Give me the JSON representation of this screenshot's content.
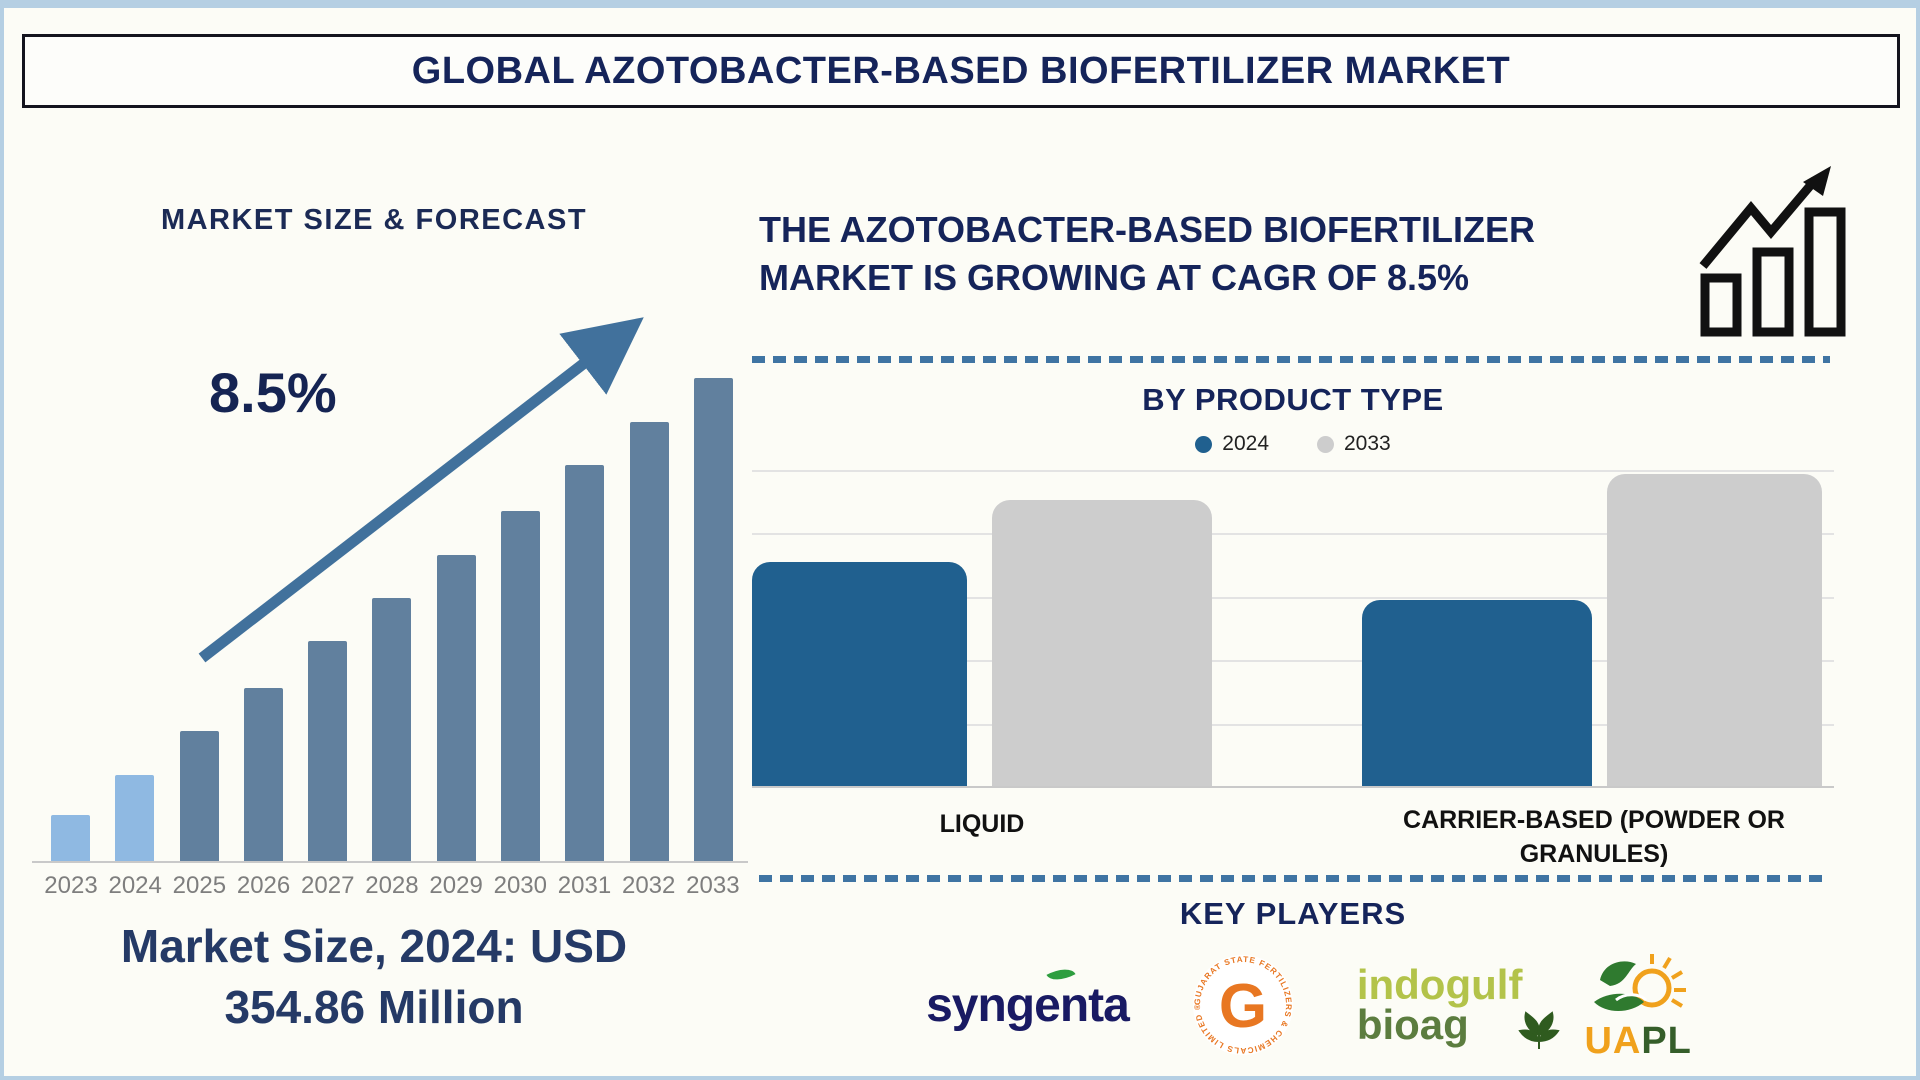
{
  "page": {
    "title": "GLOBAL AZOTOBACTER-BASED BIOFERTILIZER MARKET"
  },
  "left": {
    "heading": "MARKET SIZE & FORECAST",
    "cagr_label": "8.5%",
    "market_size_line1": "Market Size, 2024: USD",
    "market_size_line2": "354.86 Million",
    "arrow_color": "#41719c"
  },
  "right": {
    "heading_line1": "THE AZOTOBACTER-BASED BIOFERTILIZER",
    "heading_line2": "MARKET IS GROWING AT CAGR OF 8.5%",
    "key_players_title": "KEY PLAYERS",
    "key_players": [
      {
        "name": "Syngenta",
        "wordmark": "syngenta"
      },
      {
        "name": "Gujarat State Fertilizers & Chemicals Limited",
        "monogram": "G",
        "ring_text": "GUJARAT STATE FERTILIZERS & CHEMICALS LIMITED ®"
      },
      {
        "name": "Indogulf BioAg",
        "line1": "indogulf",
        "line2": "bioag"
      },
      {
        "name": "UAPL",
        "text_left": "UA",
        "text_right": "PL"
      }
    ]
  },
  "chart_data": [
    {
      "type": "bar",
      "title": "MARKET SIZE & FORECAST",
      "categories": [
        "2023",
        "2024",
        "2025",
        "2026",
        "2027",
        "2028",
        "2029",
        "2030",
        "2031",
        "2032",
        "2033"
      ],
      "values_relative_height_pct": [
        9.5,
        17.8,
        26.9,
        35.9,
        45.5,
        54.5,
        63.4,
        72.5,
        82.0,
        90.9,
        100
      ],
      "annotation": "8.5% CAGR growth arrow",
      "known_value": {
        "year": "2024",
        "value_usd_million": 354.86
      },
      "bar_colors": {
        "highlight": "#8fb9e2",
        "normal": "#61809e"
      },
      "highlight_count": 2,
      "xlabel": "",
      "ylabel": "",
      "grid": false
    },
    {
      "type": "bar",
      "title": "BY PRODUCT TYPE",
      "categories": [
        "LIQUID",
        "CARRIER-BASED (POWDER OR GRANULES)"
      ],
      "series": [
        {
          "name": "2024",
          "color": "#20608f",
          "values_pct_of_plot": [
            71,
            59
          ]
        },
        {
          "name": "2033",
          "color": "#cdcdcd",
          "values_pct_of_plot": [
            90.5,
            98.7
          ]
        }
      ],
      "legend_position": "top",
      "grid": true
    }
  ]
}
